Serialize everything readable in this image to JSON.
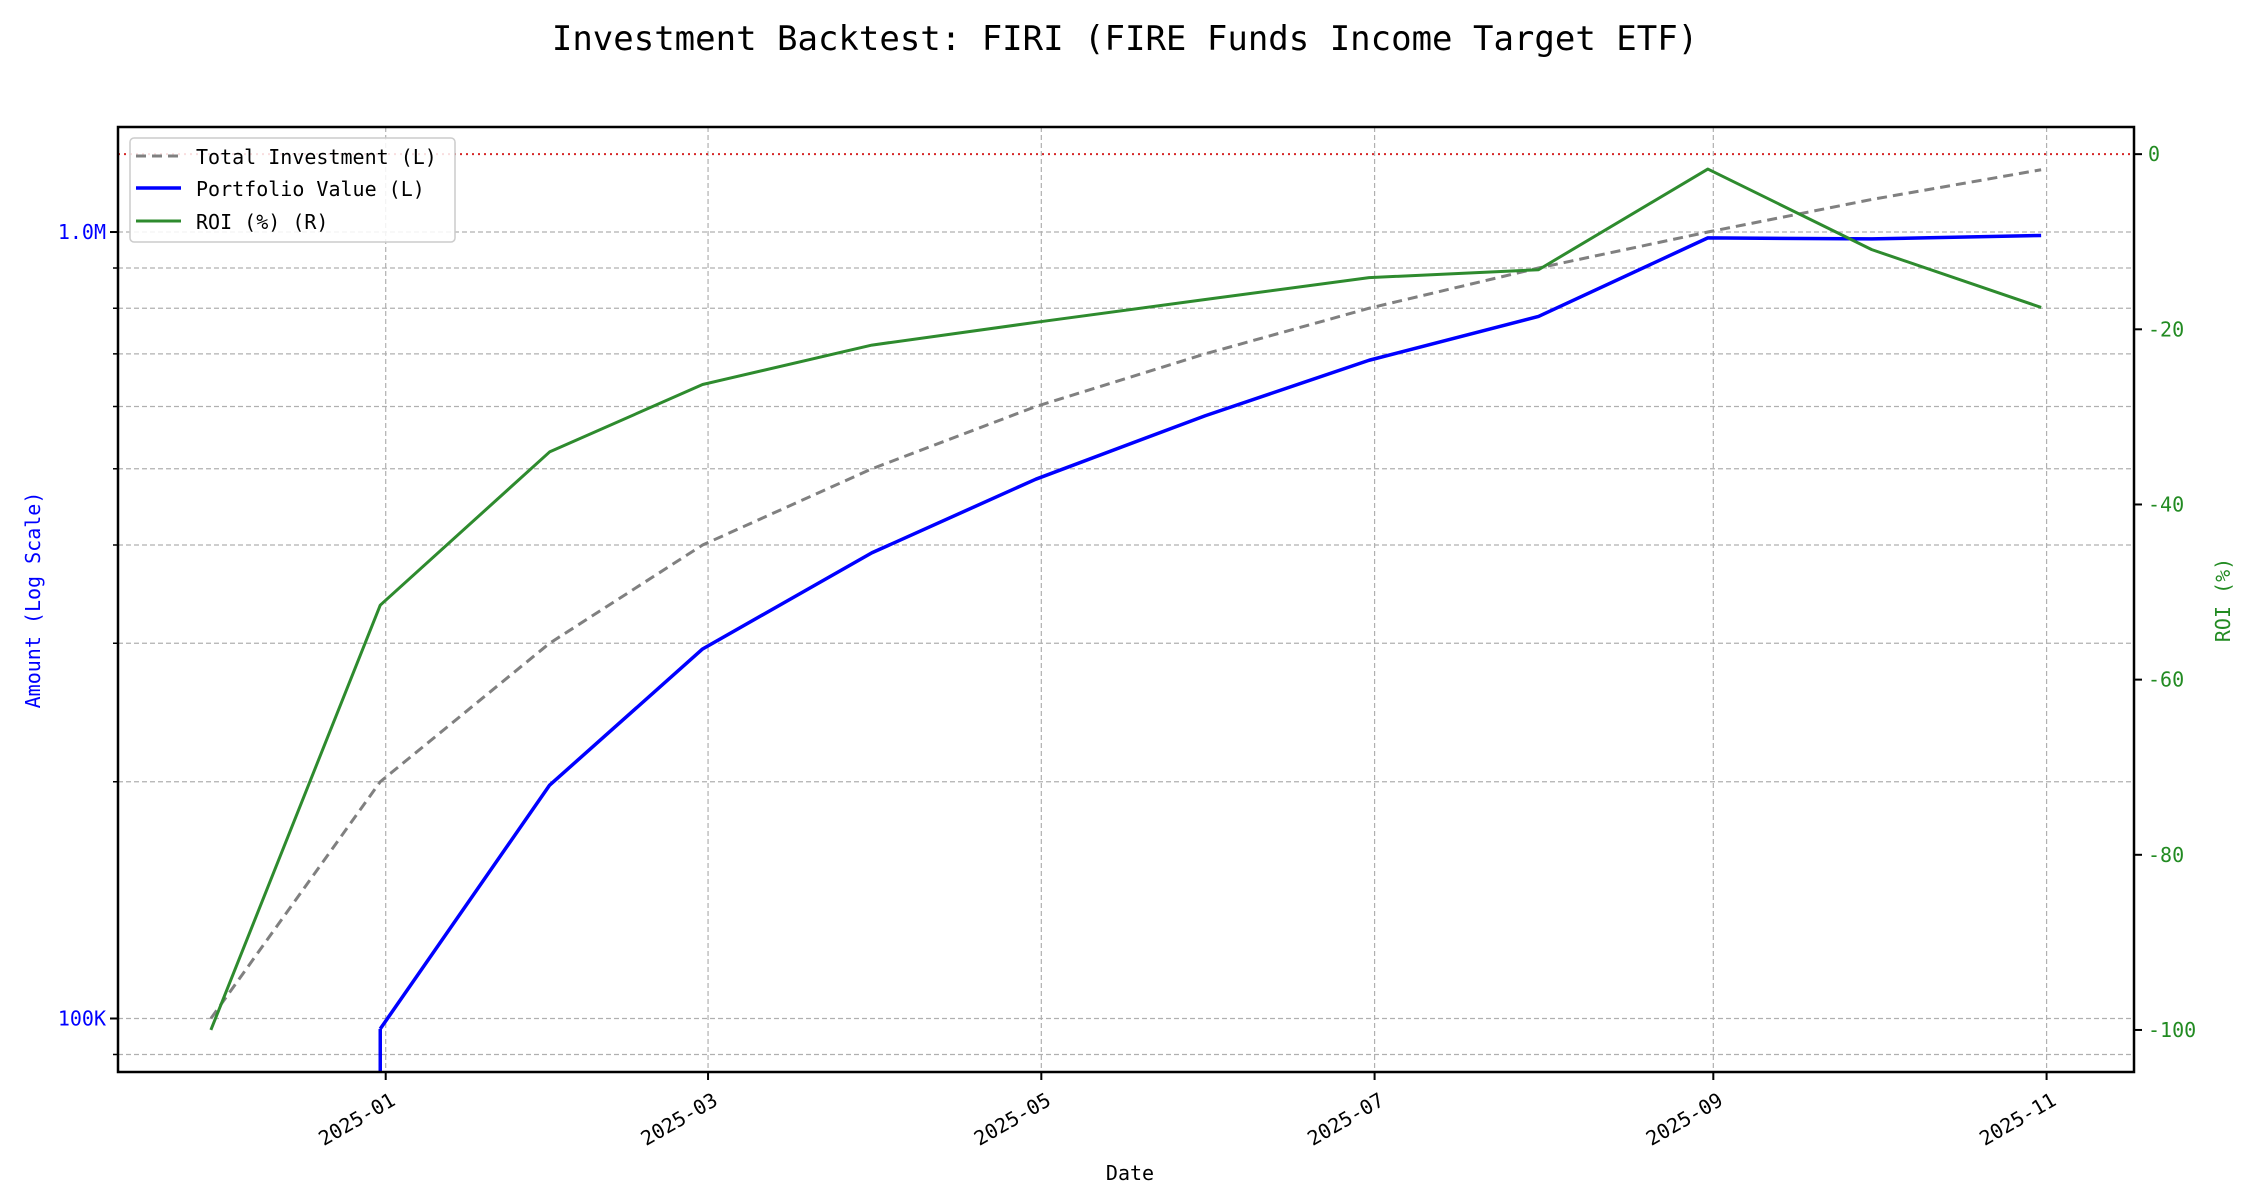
{
  "chart_data": {
    "type": "line",
    "title": "Investment Backtest: FIRI (FIRE Funds Income Target ETF)",
    "xlabel": "Date",
    "ylabel_left": "Amount (Log Scale)",
    "ylabel_right": "ROI (%)",
    "x": [
      "2024-11-30",
      "2024-12-31",
      "2025-01-31",
      "2025-02-28",
      "2025-03-31",
      "2025-04-30",
      "2025-05-31",
      "2025-06-30",
      "2025-07-31",
      "2025-08-31",
      "2025-09-30",
      "2025-10-31"
    ],
    "xlim": [
      "2024-11-13",
      "2025-11-17"
    ],
    "x_ticks": [
      "2025-01",
      "2025-03",
      "2025-05",
      "2025-07",
      "2025-09",
      "2025-11"
    ],
    "x_tick_dates": [
      "2025-01-01",
      "2025-03-01",
      "2025-05-01",
      "2025-07-01",
      "2025-09-01",
      "2025-11-01"
    ],
    "y_left_scale": "log",
    "y_left_lim": [
      85500,
      1360000
    ],
    "y_left_ticks": [
      {
        "value": 100000,
        "label": "100K"
      },
      {
        "value": 1000000,
        "label": "1.0M"
      }
    ],
    "y_right_lim": [
      -104.8,
      3.1
    ],
    "y_right_ticks": [
      0,
      -20,
      -40,
      -60,
      -80,
      -100
    ],
    "grid": true,
    "legend_position": "top-left",
    "reference_line": {
      "axis": "right",
      "value": 0,
      "color": "#d62728",
      "style": "dotted"
    },
    "series": [
      {
        "name": "Total Investment (L)",
        "axis": "left",
        "color": "#808080",
        "style": "dashed",
        "values": [
          100000,
          200000,
          300000,
          400000,
          500000,
          600000,
          700000,
          800000,
          900000,
          1000000,
          1100000,
          1200000
        ]
      },
      {
        "name": "Portfolio Value (L)",
        "axis": "left",
        "color": "#0000ff",
        "style": "solid",
        "values": [
          0,
          97000,
          198000,
          295000,
          391000,
          485000,
          584000,
          687000,
          781000,
          983000,
          980000,
          990000
        ]
      },
      {
        "name": "ROI (%) (R)",
        "axis": "right",
        "color": "#2e8b2e",
        "style": "solid",
        "values": [
          -100,
          -51.5,
          -34.0,
          -26.3,
          -21.8,
          -19.2,
          -16.6,
          -14.1,
          -13.2,
          -1.7,
          -10.9,
          -17.5
        ]
      }
    ],
    "colors": {
      "left_axis": "#0000ff",
      "right_axis": "#228b22"
    }
  }
}
